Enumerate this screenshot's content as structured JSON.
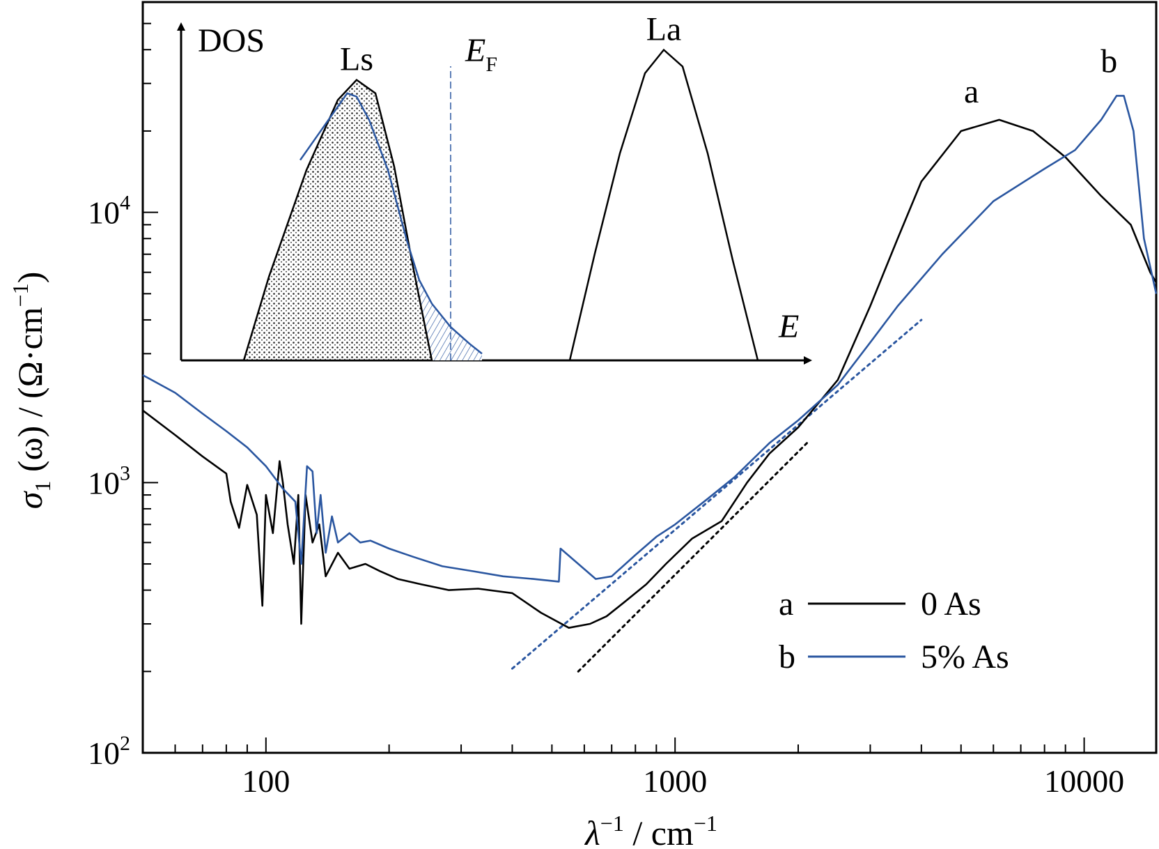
{
  "chart_data": {
    "type": "line",
    "xscale": "log",
    "yscale": "log",
    "xlim": [
      50,
      15000
    ],
    "ylim": [
      100,
      60000
    ],
    "xticks": [
      "100",
      "1000",
      "10000"
    ],
    "yticks": [
      {
        "base": "10",
        "exp": "2",
        "value": 100
      },
      {
        "base": "10",
        "exp": "3",
        "value": 1000
      },
      {
        "base": "10",
        "exp": "4",
        "value": 10000
      }
    ],
    "xlabel": {
      "sym": "λ",
      "sup": "−1",
      "unit": " / cm",
      "unit_sup": "−1"
    },
    "ylabel": {
      "sym": "σ",
      "sub": "1",
      "rest": " (ω) / (Ω·cm",
      "sup": "−1",
      "close": ")"
    },
    "colors": {
      "a": "#000000",
      "b": "#2a56a0"
    },
    "series": [
      {
        "key": "a",
        "name": "0 As",
        "x": [
          50,
          60,
          70,
          80,
          82,
          86,
          90,
          95,
          98,
          100,
          104,
          108,
          110,
          113,
          117,
          120,
          122,
          125,
          130,
          135,
          140,
          150,
          160,
          175,
          190,
          210,
          240,
          280,
          330,
          400,
          470,
          550,
          620,
          680,
          750,
          850,
          950,
          1100,
          1300,
          1500,
          1700,
          2000,
          2500,
          3000,
          3500,
          4000,
          5000,
          6200,
          7500,
          9000,
          11000,
          13000,
          14500,
          15000
        ],
        "y": [
          1850,
          1500,
          1250,
          1080,
          850,
          680,
          980,
          760,
          350,
          900,
          650,
          1200,
          1000,
          700,
          500,
          900,
          300,
          900,
          600,
          700,
          450,
          550,
          480,
          500,
          470,
          440,
          420,
          400,
          405,
          390,
          330,
          290,
          300,
          320,
          360,
          420,
          500,
          620,
          720,
          1000,
          1280,
          1600,
          2400,
          4500,
          8000,
          13000,
          20000,
          22000,
          20000,
          16000,
          11500,
          9000,
          6000,
          5500
        ]
      },
      {
        "key": "b",
        "name": "5% As",
        "x": [
          50,
          60,
          70,
          80,
          90,
          100,
          110,
          118,
          122,
          126,
          130,
          133,
          136,
          140,
          145,
          150,
          160,
          170,
          180,
          200,
          230,
          270,
          320,
          380,
          450,
          520,
          525,
          640,
          700,
          800,
          900,
          1000,
          1200,
          1400,
          1700,
          2000,
          2500,
          3000,
          3500,
          4500,
          6000,
          8000,
          9500,
          11000,
          12000,
          12500,
          13200,
          14000,
          15000
        ],
        "y": [
          2500,
          2150,
          1800,
          1550,
          1350,
          1150,
          950,
          850,
          500,
          1150,
          1100,
          650,
          900,
          550,
          750,
          600,
          650,
          600,
          610,
          570,
          530,
          490,
          470,
          450,
          440,
          430,
          570,
          440,
          450,
          540,
          630,
          700,
          870,
          1050,
          1400,
          1700,
          2300,
          3300,
          4500,
          7000,
          11000,
          14500,
          17000,
          22000,
          27000,
          27000,
          20000,
          8000,
          5000
        ]
      }
    ],
    "fit_lines": [
      {
        "color": "b",
        "x": [
          400,
          4000
        ],
        "y": [
          205,
          4000
        ]
      },
      {
        "color": "a",
        "x": [
          580,
          2100
        ],
        "y": [
          200,
          1400
        ]
      }
    ],
    "peak_labels": [
      {
        "text": "a",
        "x": 5300,
        "y": 25500
      },
      {
        "text": "b",
        "x": 11500,
        "y": 33000
      }
    ],
    "legend": {
      "placement": "bottom-right",
      "entries": [
        {
          "key": "a",
          "label": "0 As"
        },
        {
          "key": "b",
          "label": "5% As"
        }
      ]
    },
    "inset": {
      "type": "line",
      "ylabel": "DOS",
      "xlabel": "E",
      "fermi_label": {
        "base": "E",
        "sub": "F"
      },
      "fermi_x": 0.43,
      "peaks": [
        {
          "label": "Ls",
          "x": 0.28,
          "height": 0.84
        },
        {
          "label": "La",
          "x": 0.77,
          "height": 0.93
        }
      ],
      "curves": {
        "ls": {
          "x": [
            0.1,
            0.14,
            0.2,
            0.25,
            0.28,
            0.31,
            0.34,
            0.37,
            0.4
          ],
          "y": [
            0,
            0.25,
            0.57,
            0.78,
            0.84,
            0.8,
            0.58,
            0.28,
            0
          ]
        },
        "la": {
          "x": [
            0.62,
            0.66,
            0.7,
            0.74,
            0.77,
            0.8,
            0.84,
            0.88,
            0.92
          ],
          "y": [
            0,
            0.32,
            0.62,
            0.86,
            0.93,
            0.88,
            0.62,
            0.3,
            0
          ]
        },
        "b": {
          "x": [
            0.19,
            0.22,
            0.25,
            0.265,
            0.28,
            0.3,
            0.33,
            0.36,
            0.38,
            0.4,
            0.43,
            0.46,
            0.48
          ],
          "y": [
            0.6,
            0.68,
            0.76,
            0.8,
            0.79,
            0.72,
            0.57,
            0.36,
            0.24,
            0.17,
            0.1,
            0.05,
            0.02
          ]
        }
      }
    }
  }
}
